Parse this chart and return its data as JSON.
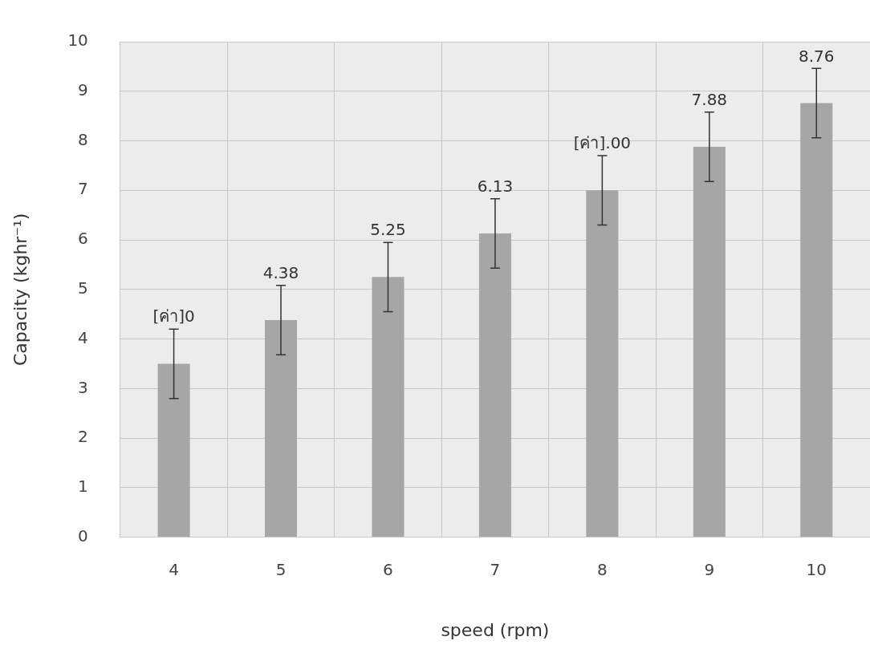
{
  "chart_data": {
    "type": "bar",
    "xlabel": "speed (rpm)",
    "ylabel": "Capacity (kghr⁻¹)",
    "categories": [
      "4",
      "5",
      "6",
      "7",
      "8",
      "9",
      "10"
    ],
    "values": [
      3.5,
      4.38,
      5.25,
      6.13,
      7.0,
      7.88,
      8.76
    ],
    "value_labels": [
      null,
      "4.38",
      "5.25",
      "6.13",
      null,
      "7.88",
      "8.76"
    ],
    "annotations": [
      {
        "text": "[ค่า]0",
        "x": "4",
        "y": 4.2
      },
      {
        "text": "[ค่า].00",
        "x": "8",
        "y": 7.7
      }
    ],
    "errors": [
      0.7,
      0.7,
      0.7,
      0.7,
      0.7,
      0.7,
      0.7
    ],
    "color": "#a6a6a6",
    "ylim": [
      0,
      10
    ],
    "yticks": [
      0,
      1,
      2,
      3,
      4,
      5,
      6,
      7,
      8,
      9,
      10
    ],
    "grid": true,
    "legend": false
  }
}
